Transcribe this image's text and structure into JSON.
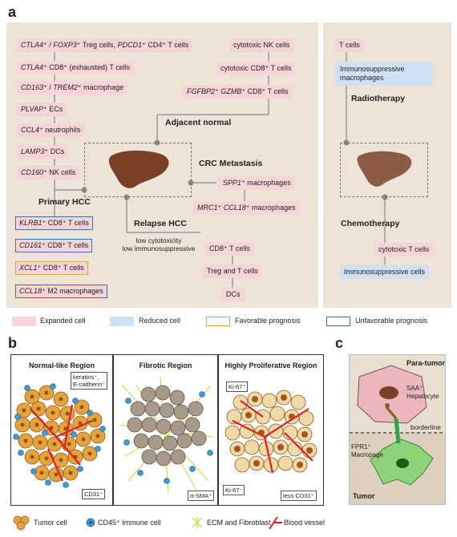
{
  "panels": {
    "a": "a",
    "b": "b",
    "c": "c"
  },
  "panel_a": {
    "primary_hcc": {
      "title": "Primary HCC",
      "expanded": [
        {
          "italic": "CTLA4",
          "rest": "⁺ / ",
          "italic2": "FOXP3",
          "rest2": "⁺ Treg cells, ",
          "italic3": "PDCD1",
          "rest3": "⁺ CD4⁺ T cells"
        },
        {
          "italic": "CTLA4",
          "rest": "⁺ CD8⁺ (exhausted) T cells"
        },
        {
          "italic": "CD163",
          "rest": "⁺ / ",
          "italic2": "TREM2",
          "rest2": "⁺ macrophage"
        },
        {
          "italic": "PLVAP",
          "rest": "⁺ ECs"
        },
        {
          "italic": "CCL4",
          "rest": "⁺ neutrophils"
        },
        {
          "italic": "LAMP3",
          "rest": "⁺ DCs"
        },
        {
          "italic": "CD160",
          "rest": "⁺ NK cells"
        }
      ],
      "prognosis": [
        {
          "italic": "KLRB1",
          "rest": "⁺ CD8⁺ T cells",
          "kind": "unfavorable"
        },
        {
          "italic": "CD161",
          "rest": "⁺ CD8⁺ T cells",
          "kind": "unfavorable"
        },
        {
          "italic": "XCL1",
          "rest": "⁺ CD8⁺ T cells",
          "kind": "favorable"
        },
        {
          "italic": "CCL18",
          "rest": "⁺ M2 macrophages",
          "kind": "unfavorable"
        }
      ]
    },
    "adjacent_normal": {
      "title": "Adjacent normal",
      "items": [
        {
          "italic": "",
          "rest": "cytotoxic NK cells"
        },
        {
          "italic": "",
          "rest": "cytotoxic CD8⁺ T cells"
        },
        {
          "italic": "FGFBP2",
          "rest": "⁺ ",
          "italic2": "GZMB",
          "rest2": "⁺ CD8⁺ T cells"
        }
      ]
    },
    "crc_metastasis": {
      "title": "CRC Metastasis",
      "items": [
        {
          "italic": "SPP1",
          "rest": "⁺ macrophages"
        },
        {
          "italic": "MRC1",
          "rest": "⁺ ",
          "italic2": "CCL18",
          "rest2": "⁺ macrophages"
        }
      ]
    },
    "relapse_hcc": {
      "title": "Relapse HCC",
      "note_line1": "low cytotoxicity",
      "note_line2": "low immunosuppressive",
      "items": [
        "CD8⁺ T cells",
        "Treg and T cells",
        "DCs"
      ]
    },
    "radiotherapy": {
      "title": "Radiotherapy",
      "items": [
        "T cells"
      ],
      "reduced": [
        "Immunosuppressive macrophages"
      ]
    },
    "chemotherapy": {
      "title": "Chemotherapy",
      "items": [
        "cytotoxic T cells"
      ],
      "reduced": [
        "Immunosuppressive cells"
      ]
    },
    "legend": {
      "expanded": "Expanded cell",
      "reduced": "Reduced cell",
      "favorable": "Favorable prognosis",
      "unfavorable": "Unfavorable prognosis"
    },
    "colors": {
      "background": "#ede3d6",
      "expanded": "#f6d4d8",
      "reduced": "#cfe1f2",
      "favorable": "#e8a33a",
      "unfavorable": "#3e6faf",
      "liver": "#7b3f26"
    }
  },
  "panel_b": {
    "regions": [
      {
        "title": "Normal-like Region",
        "labels": [
          "keratins⁺,",
          "E-cadherin⁺",
          "CD31⁺"
        ]
      },
      {
        "title": "Fibrotic Region",
        "labels": [
          "α-SMA⁺"
        ]
      },
      {
        "title": "Highly Proliferative Region",
        "labels": [
          "Ki-67⁺",
          "Ki-67⁻",
          "less CD31⁺"
        ]
      }
    ],
    "legend": {
      "tumor_cell": "Tumor cell",
      "immune_cell": "CD45⁺ Immune cell",
      "ecm": "ECM and Fibroblast",
      "vessel": "Blood vessel"
    },
    "colors": {
      "tumor": "#e8a23c",
      "immune": "#3a9bd8",
      "vessel": "#e02020",
      "ecm": "#c5d82a",
      "fibrotic_cell": "#a89a8a"
    }
  },
  "panel_c": {
    "para_tumor": "Para-tumor",
    "hepatocyte": "SAA⁺\nHepatocyte",
    "hepatocyte_line1": "SAA⁺",
    "hepatocyte_line2": "Hepatocyte",
    "borderline": "borderline",
    "macrophage_line1": "FPR1⁺",
    "macrophage_line2": "Macropage",
    "tumor": "Tumor",
    "colors": {
      "background": "#e9dfd1",
      "hepatocyte": "#eab8bc",
      "macrophage": "#8ed27a"
    }
  }
}
